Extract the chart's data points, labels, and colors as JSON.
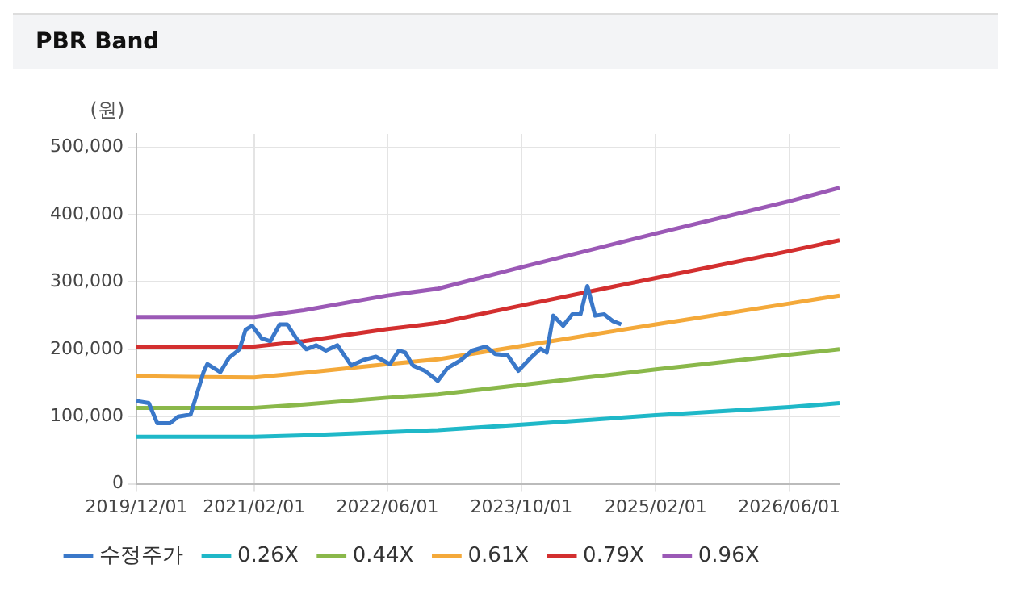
{
  "chart_data": {
    "type": "line",
    "title": "PBR Band",
    "ylabel": "(원)",
    "xlim": [
      "2019-12-01",
      "2026-12-01"
    ],
    "xticks": [
      {
        "value": "2019-12-01",
        "label": "2019/12/01"
      },
      {
        "value": "2021-02-01",
        "label": "2021/02/01"
      },
      {
        "value": "2022-06-01",
        "label": "2022/06/01"
      },
      {
        "value": "2023-10-01",
        "label": "2023/10/01"
      },
      {
        "value": "2025-02-01",
        "label": "2025/02/01"
      },
      {
        "value": "2026-06-01",
        "label": "2026/06/01"
      }
    ],
    "ylim": [
      0,
      520000
    ],
    "yticks": [
      {
        "value": 0,
        "label": "0"
      },
      {
        "value": 100000,
        "label": "100,000"
      },
      {
        "value": 200000,
        "label": "200,000"
      },
      {
        "value": 300000,
        "label": "300,000"
      },
      {
        "value": 400000,
        "label": "400,000"
      },
      {
        "value": 500000,
        "label": "500,000"
      }
    ],
    "grid": true,
    "legend": "bottom",
    "marker": "none",
    "line_style": "solid",
    "series": [
      {
        "name": "수정주가",
        "color": "#3a78c9",
        "x": [
          "2019-12-01",
          "2020-01-15",
          "2020-02-15",
          "2020-04-01",
          "2020-05-01",
          "2020-06-15",
          "2020-08-01",
          "2020-08-15",
          "2020-10-01",
          "2020-11-01",
          "2020-12-10",
          "2021-01-01",
          "2021-01-25",
          "2021-03-01",
          "2021-04-01",
          "2021-05-05",
          "2021-06-01",
          "2021-07-05",
          "2021-08-10",
          "2021-09-15",
          "2021-10-20",
          "2021-12-01",
          "2022-01-20",
          "2022-03-05",
          "2022-04-20",
          "2022-06-10",
          "2022-07-12",
          "2022-08-05",
          "2022-09-01",
          "2022-10-15",
          "2022-12-01",
          "2023-01-05",
          "2023-02-20",
          "2023-04-05",
          "2023-05-25",
          "2023-06-28",
          "2023-08-12",
          "2023-09-20",
          "2023-11-03",
          "2023-12-10",
          "2024-01-01",
          "2024-01-25",
          "2024-03-01",
          "2024-04-03",
          "2024-05-03",
          "2024-05-28",
          "2024-06-25",
          "2024-07-28",
          "2024-08-28",
          "2024-09-28"
        ],
        "values": [
          123000,
          120000,
          90000,
          90000,
          100000,
          103000,
          166000,
          178000,
          166000,
          187000,
          200000,
          229000,
          235000,
          216000,
          212000,
          237000,
          237000,
          216000,
          200000,
          206000,
          198000,
          206000,
          176000,
          184000,
          189000,
          178000,
          198000,
          195000,
          176000,
          168000,
          153000,
          172000,
          183000,
          198000,
          204000,
          193000,
          191000,
          168000,
          187000,
          201000,
          195000,
          250000,
          235000,
          252000,
          252000,
          294000,
          250000,
          252000,
          242000,
          237000
        ]
      },
      {
        "name": "0.26X",
        "color": "#1fb8c8",
        "x": [
          "2019-12-01",
          "2021-02-01",
          "2021-08-01",
          "2022-06-01",
          "2022-12-01",
          "2023-10-01",
          "2025-02-01",
          "2026-06-01",
          "2026-12-01"
        ],
        "values": [
          70000,
          70000,
          72000,
          77000,
          80000,
          88000,
          102000,
          114000,
          120000
        ]
      },
      {
        "name": "0.44X",
        "color": "#8ab84a",
        "x": [
          "2019-12-01",
          "2021-02-01",
          "2021-08-01",
          "2022-06-01",
          "2022-12-01",
          "2023-10-01",
          "2025-02-01",
          "2026-06-01",
          "2026-12-01"
        ],
        "values": [
          113000,
          113000,
          118000,
          128000,
          133000,
          147000,
          170000,
          192000,
          200000
        ]
      },
      {
        "name": "0.61X",
        "color": "#f4a93a",
        "x": [
          "2019-12-01",
          "2021-02-01",
          "2021-08-01",
          "2022-06-01",
          "2022-12-01",
          "2023-10-01",
          "2025-02-01",
          "2026-06-01",
          "2026-12-01"
        ],
        "values": [
          160000,
          158000,
          165000,
          178000,
          185000,
          205000,
          237000,
          268000,
          280000
        ]
      },
      {
        "name": "0.79X",
        "color": "#d32f2f",
        "x": [
          "2019-12-01",
          "2021-02-01",
          "2021-08-01",
          "2022-06-01",
          "2022-12-01",
          "2023-10-01",
          "2025-02-01",
          "2026-06-01",
          "2026-12-01"
        ],
        "values": [
          204000,
          204000,
          212000,
          230000,
          239000,
          265000,
          306000,
          346000,
          362000
        ]
      },
      {
        "name": "0.96X",
        "color": "#9b59b6",
        "x": [
          "2019-12-01",
          "2021-02-01",
          "2021-08-01",
          "2022-06-01",
          "2022-12-01",
          "2023-10-01",
          "2025-02-01",
          "2026-06-01",
          "2026-12-01"
        ],
        "values": [
          248000,
          248000,
          258000,
          280000,
          290000,
          322000,
          372000,
          420000,
          440000
        ]
      }
    ]
  }
}
